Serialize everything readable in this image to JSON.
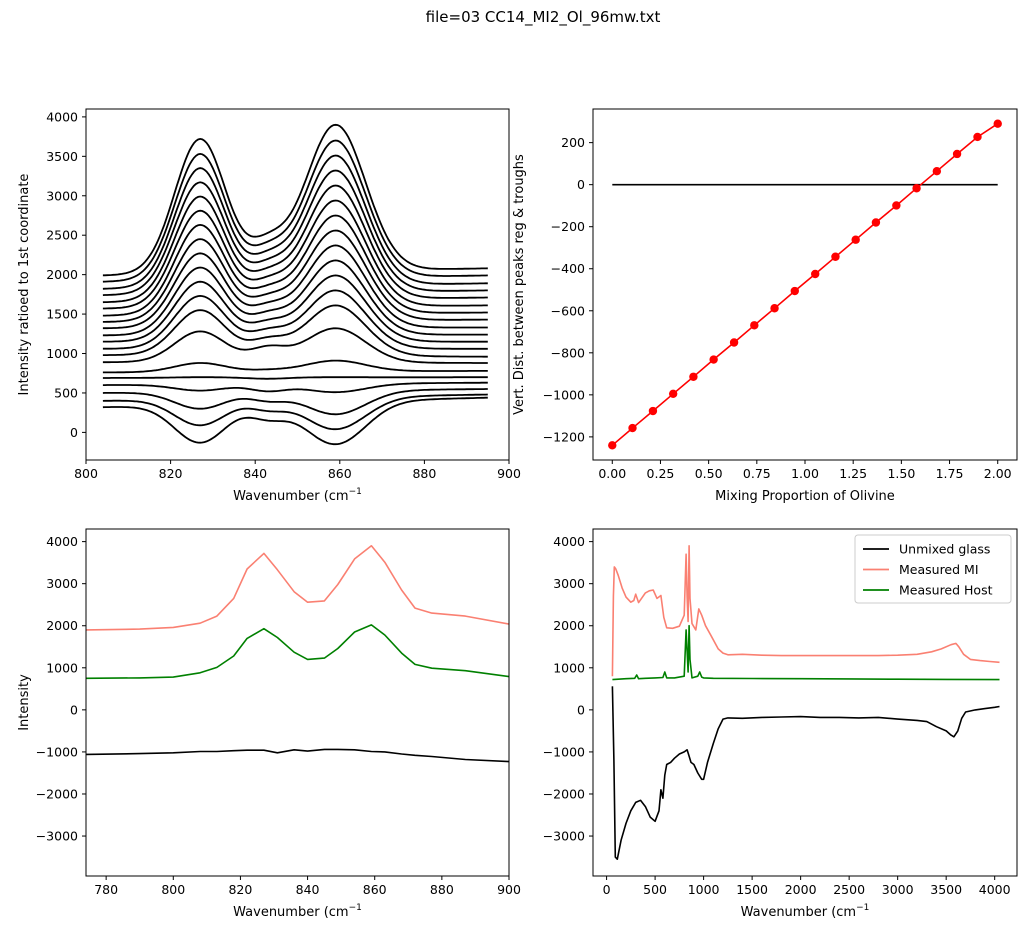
{
  "figure": {
    "suptitle": "file=03 CC14_MI2_Ol_96mw.txt"
  },
  "chart_data": [
    {
      "id": "top_left",
      "type": "line",
      "title": "",
      "xlabel": "Wavenumber (cm",
      "xlabel_sup": "−1",
      "ylabel": "Intensity ratioed to 1st coordinate",
      "xlim": [
        800,
        900
      ],
      "ylim": [
        -350,
        4100
      ],
      "xticks": [
        800,
        820,
        840,
        860,
        880,
        900
      ],
      "yticks": [
        0,
        500,
        1000,
        1500,
        2000,
        2500,
        3000,
        3500,
        4000
      ],
      "colors": {
        "curves": "#000000"
      },
      "x_range": [
        804,
        895
      ],
      "series_note_values": "20 curves; offsets (value at x=804) and peak heights below",
      "series": [
        {
          "name": "",
          "start": 1990,
          "peak1": 3720,
          "trough": 2530,
          "peak2": 3900,
          "end": 2080
        },
        {
          "name": "",
          "start": 1910,
          "peak1": 3530,
          "trough": 2420,
          "peak2": 3700,
          "end": 1990
        },
        {
          "name": "",
          "start": 1820,
          "peak1": 3350,
          "trough": 2310,
          "peak2": 3510,
          "end": 1890
        },
        {
          "name": "",
          "start": 1740,
          "peak1": 3170,
          "trough": 2200,
          "peak2": 3320,
          "end": 1800
        },
        {
          "name": "",
          "start": 1650,
          "peak1": 2990,
          "trough": 2090,
          "peak2": 3130,
          "end": 1710
        },
        {
          "name": "",
          "start": 1570,
          "peak1": 2810,
          "trough": 1980,
          "peak2": 2940,
          "end": 1610
        },
        {
          "name": "",
          "start": 1480,
          "peak1": 2630,
          "trough": 1870,
          "peak2": 2750,
          "end": 1520
        },
        {
          "name": "",
          "start": 1400,
          "peak1": 2450,
          "trough": 1760,
          "peak2": 2560,
          "end": 1430
        },
        {
          "name": "",
          "start": 1320,
          "peak1": 2270,
          "trough": 1650,
          "peak2": 2370,
          "end": 1330
        },
        {
          "name": "",
          "start": 1230,
          "peak1": 2090,
          "trough": 1540,
          "peak2": 2180,
          "end": 1240
        },
        {
          "name": "",
          "start": 1150,
          "peak1": 1910,
          "trough": 1430,
          "peak2": 1990,
          "end": 1150
        },
        {
          "name": "",
          "start": 1060,
          "peak1": 1730,
          "trough": 1320,
          "peak2": 1800,
          "end": 1060
        },
        {
          "name": "",
          "start": 980,
          "peak1": 1550,
          "trough": 1210,
          "peak2": 1610,
          "end": 960
        },
        {
          "name": "",
          "start": 890,
          "peak1": 1280,
          "trough": 1100,
          "peak2": 1320,
          "end": 880
        },
        {
          "name": "",
          "start": 760,
          "peak1": 880,
          "trough": 800,
          "peak2": 910,
          "end": 780
        },
        {
          "name": "",
          "start": 690,
          "peak1": 700,
          "trough": 680,
          "peak2": 700,
          "end": 700
        },
        {
          "name": "",
          "start": 600,
          "peak1": 530,
          "trough": 520,
          "peak2": 510,
          "end": 630
        },
        {
          "name": "",
          "start": 500,
          "peak1": 300,
          "trough": 390,
          "peak2": 230,
          "end": 550
        },
        {
          "name": "",
          "start": 400,
          "peak1": 90,
          "trough": 270,
          "peak2": 40,
          "end": 480
        },
        {
          "name": "",
          "start": 320,
          "peak1": -130,
          "trough": 150,
          "peak2": -150,
          "end": 440
        }
      ]
    },
    {
      "id": "top_right",
      "type": "line",
      "title": "",
      "xlabel": "Mixing Proportion of Olivine",
      "ylabel": "Vert. Dist. between peaks reg & troughs",
      "xlim": [
        -0.1,
        2.1
      ],
      "ylim": [
        -1310,
        360
      ],
      "xticks": [
        0.0,
        0.25,
        0.5,
        0.75,
        1.0,
        1.25,
        1.5,
        1.75,
        2.0
      ],
      "xtick_labels": [
        "0.00",
        "0.25",
        "0.50",
        "0.75",
        "1.00",
        "1.25",
        "1.50",
        "1.75",
        "2.00"
      ],
      "yticks": [
        -1200,
        -1000,
        -800,
        -600,
        -400,
        -200,
        0,
        200
      ],
      "colors": {
        "zero_line": "#000000",
        "series": "#ff0000"
      },
      "zero_line": {
        "x": [
          0.0,
          2.0
        ],
        "y": [
          0,
          0
        ]
      },
      "series": [
        {
          "name": "",
          "x": [
            0.0,
            0.105,
            0.211,
            0.316,
            0.421,
            0.526,
            0.632,
            0.737,
            0.842,
            0.947,
            1.053,
            1.158,
            1.263,
            1.368,
            1.474,
            1.579,
            1.684,
            1.789,
            1.895,
            2.0
          ],
          "y": [
            -1240,
            -1158,
            -1077,
            -995,
            -914,
            -832,
            -751,
            -669,
            -588,
            -506,
            -425,
            -343,
            -262,
            -180,
            -99,
            -17,
            64,
            146,
            227,
            290
          ]
        }
      ]
    },
    {
      "id": "bottom_left",
      "type": "line",
      "title": "",
      "xlabel": "Wavenumber (cm",
      "xlabel_sup": "−1",
      "ylabel": "Intensity",
      "xlim": [
        774,
        900
      ],
      "ylim": [
        -3950,
        4300
      ],
      "xticks": [
        780,
        800,
        820,
        840,
        860,
        880,
        900
      ],
      "yticks": [
        -3000,
        -2000,
        -1000,
        0,
        1000,
        2000,
        3000,
        4000
      ],
      "colors": {
        "mi": "#fa8072",
        "host": "#008000",
        "glass": "#000000"
      },
      "series": [
        {
          "name": "",
          "color_key": "mi",
          "x": [
            774,
            790,
            800,
            808,
            813,
            818,
            822,
            827,
            831,
            836,
            840,
            845,
            849,
            854,
            859,
            863,
            868,
            872,
            877,
            887,
            900
          ],
          "y": [
            1900,
            1920,
            1960,
            2060,
            2230,
            2650,
            3350,
            3720,
            3330,
            2810,
            2560,
            2590,
            2980,
            3590,
            3900,
            3510,
            2850,
            2420,
            2300,
            2230,
            2040
          ]
        },
        {
          "name": "",
          "color_key": "host",
          "x": [
            774,
            790,
            800,
            808,
            813,
            818,
            822,
            827,
            831,
            836,
            840,
            845,
            849,
            854,
            859,
            863,
            868,
            872,
            877,
            887,
            900
          ],
          "y": [
            750,
            760,
            780,
            880,
            1010,
            1280,
            1700,
            1930,
            1720,
            1370,
            1200,
            1230,
            1460,
            1850,
            2020,
            1780,
            1350,
            1080,
            990,
            930,
            790
          ]
        },
        {
          "name": "",
          "color_key": "glass",
          "x": [
            774,
            790,
            800,
            808,
            813,
            818,
            822,
            827,
            831,
            836,
            840,
            845,
            849,
            854,
            859,
            863,
            868,
            872,
            877,
            887,
            900
          ],
          "y": [
            -1060,
            -1040,
            -1020,
            -990,
            -990,
            -970,
            -960,
            -960,
            -1020,
            -950,
            -980,
            -940,
            -940,
            -950,
            -990,
            -1000,
            -1050,
            -1080,
            -1110,
            -1180,
            -1230
          ]
        }
      ]
    },
    {
      "id": "bottom_right",
      "type": "line",
      "title": "",
      "xlabel": "Wavenumber (cm",
      "xlabel_sup": "−1",
      "ylabel": "",
      "xlim": [
        -140,
        4230
      ],
      "ylim": [
        -3950,
        4300
      ],
      "xticks": [
        0,
        500,
        1000,
        1500,
        2000,
        2500,
        3000,
        3500,
        4000
      ],
      "yticks": [
        -3000,
        -2000,
        -1000,
        0,
        1000,
        2000,
        3000,
        4000
      ],
      "legend": {
        "placement": "top-right",
        "entries": [
          "Unmixed glass",
          "Measured MI",
          "Measured Host"
        ]
      },
      "colors": {
        "glass": "#000000",
        "mi": "#fa8072",
        "host": "#008000"
      },
      "series": [
        {
          "name": "Unmixed glass",
          "color_key": "glass",
          "x": [
            60,
            75,
            90,
            110,
            150,
            200,
            250,
            300,
            350,
            400,
            450,
            500,
            540,
            560,
            580,
            600,
            620,
            660,
            700,
            750,
            800,
            830,
            850,
            870,
            900,
            940,
            980,
            1000,
            1040,
            1100,
            1150,
            1200,
            1250,
            1400,
            1600,
            1800,
            2000,
            2200,
            2400,
            2600,
            2800,
            3000,
            3200,
            3300,
            3400,
            3500,
            3550,
            3580,
            3620,
            3660,
            3700,
            3800,
            3900,
            4000,
            4050
          ],
          "y": [
            560,
            -1200,
            -3500,
            -3550,
            -3100,
            -2700,
            -2400,
            -2200,
            -2150,
            -2300,
            -2550,
            -2650,
            -2400,
            -1900,
            -2100,
            -1550,
            -1300,
            -1250,
            -1150,
            -1050,
            -1000,
            -950,
            -1100,
            -1250,
            -1300,
            -1500,
            -1650,
            -1650,
            -1250,
            -800,
            -450,
            -220,
            -190,
            -200,
            -180,
            -170,
            -160,
            -180,
            -180,
            -190,
            -180,
            -220,
            -250,
            -280,
            -400,
            -500,
            -600,
            -640,
            -500,
            -200,
            -50,
            0,
            30,
            60,
            80
          ]
        },
        {
          "name": "Measured MI",
          "color_key": "mi",
          "x": [
            60,
            70,
            80,
            95,
            120,
            160,
            200,
            250,
            280,
            300,
            330,
            360,
            400,
            440,
            480,
            520,
            560,
            590,
            620,
            680,
            750,
            800,
            820,
            830,
            840,
            850,
            860,
            880,
            920,
            950,
            980,
            1020,
            1080,
            1150,
            1200,
            1250,
            1400,
            1600,
            1800,
            2000,
            2200,
            2400,
            2600,
            2800,
            3000,
            3200,
            3350,
            3450,
            3550,
            3600,
            3630,
            3680,
            3750,
            3850,
            3950,
            4050
          ],
          "y": [
            800,
            2700,
            3400,
            3350,
            3200,
            2900,
            2680,
            2560,
            2600,
            2750,
            2550,
            2650,
            2780,
            2830,
            2850,
            2650,
            2720,
            2200,
            1950,
            1940,
            1990,
            2250,
            3700,
            2700,
            2100,
            3900,
            2650,
            2050,
            1900,
            2400,
            2250,
            2000,
            1750,
            1450,
            1350,
            1310,
            1320,
            1300,
            1290,
            1290,
            1290,
            1290,
            1290,
            1290,
            1300,
            1320,
            1380,
            1450,
            1550,
            1580,
            1500,
            1320,
            1200,
            1170,
            1150,
            1130
          ]
        },
        {
          "name": "Measured Host",
          "color_key": "host",
          "x": [
            60,
            200,
            290,
            310,
            330,
            400,
            500,
            580,
            600,
            620,
            700,
            800,
            820,
            830,
            840,
            850,
            860,
            880,
            940,
            960,
            980,
            1000,
            1100,
            1500,
            2000,
            2500,
            3000,
            3500,
            4050
          ],
          "y": [
            720,
            740,
            750,
            830,
            740,
            750,
            760,
            770,
            900,
            760,
            760,
            800,
            1900,
            1400,
            900,
            2000,
            1200,
            760,
            800,
            900,
            780,
            760,
            750,
            745,
            740,
            735,
            730,
            725,
            720
          ]
        }
      ]
    }
  ]
}
